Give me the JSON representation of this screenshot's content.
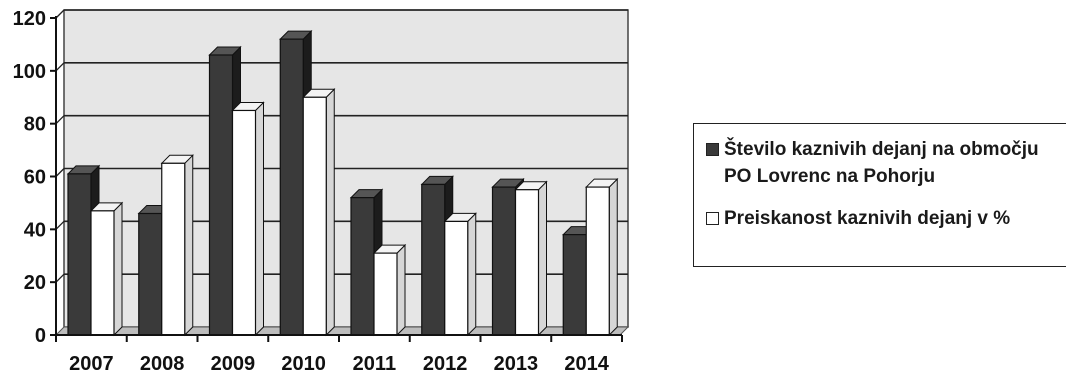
{
  "chart_data": {
    "type": "bar",
    "categories": [
      "2007",
      "2008",
      "2009",
      "2010",
      "2011",
      "2012",
      "2013",
      "2014"
    ],
    "series": [
      {
        "name": "Število kaznivih dejanj na območju PO Lovrenc na Pohorju",
        "values": [
          61,
          46,
          106,
          112,
          52,
          57,
          56,
          38
        ],
        "color": "#3a3a3a"
      },
      {
        "name": "Preiskanost kaznivih dejanj v %",
        "values": [
          47,
          65,
          85,
          90,
          31,
          43,
          55,
          56
        ],
        "color": "#ffffff"
      }
    ],
    "yticks": [
      "0",
      "20",
      "40",
      "60",
      "80",
      "100",
      "120"
    ],
    "ylim": [
      0,
      120
    ],
    "grid": true,
    "legend_position": "right",
    "style": "3d-clustered-column",
    "plot_background": "#e6e6e6"
  }
}
